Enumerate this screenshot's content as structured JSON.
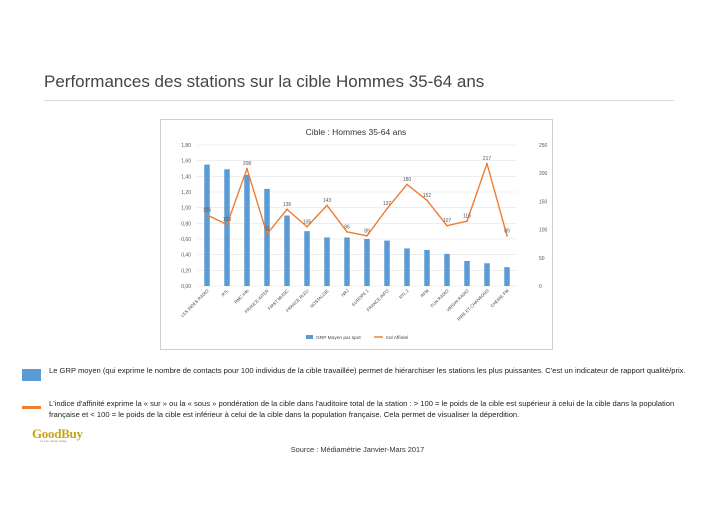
{
  "page": {
    "title": "Performances des stations sur la cible Hommes 35-64 ans",
    "source": "Source : Médiamétrie Janvier-Mars 2017",
    "logo_text": "GoodBuy",
    "logo_tagline": "Le bon achat média"
  },
  "legend_notes": [
    {
      "text": "Le GRP moyen (qui exprime le nombre de contacts pour 100 individus de la cible travaillée) permet de hiérarchiser les stations les plus puissantes. C'est un indicateur de rapport qualité/prix."
    },
    {
      "text": "L'indice d'affinité exprime la « sur » ou la « sous » pondération de la cible dans l'auditoire total de la station : > 100 = le poids de la cible est supérieur à celui de la cible dans la population française et < 100 = le poids de la cible est inférieur à celui de la cible dans la population française. Cela permet de visualiser la déperdition."
    }
  ],
  "colors": {
    "bar": "#5b9bd5",
    "line": "#ed7d31",
    "grid": "#e4e4e4",
    "axis_text": "#555555"
  },
  "chart_data": {
    "type": "bar",
    "title": "Cible : Hommes 35-64 ans",
    "categories": [
      "LES INDES RADIO",
      "RTL",
      "RMC Info",
      "FRANCE INTER",
      "FIRST MUSIC",
      "FRANCE BLEU",
      "NOSTALGIE",
      "NRJ",
      "EUROPE 1",
      "FRANCE INFO",
      "RTL 2",
      "RFM",
      "FUN RADIO",
      "VIRGIN RADIO",
      "RIRE ET CHANSONS",
      "CHERIE FM"
    ],
    "series": [
      {
        "name": "GRP Moyen par spot",
        "type": "bar",
        "axis": "left",
        "values": [
          1.55,
          1.49,
          1.42,
          1.24,
          0.9,
          0.7,
          0.62,
          0.62,
          0.6,
          0.58,
          0.48,
          0.46,
          0.41,
          0.32,
          0.29,
          0.24
        ]
      },
      {
        "name": "Ind Affinité",
        "type": "line",
        "axis": "right",
        "values": [
          126,
          109,
          208,
          92,
          136,
          105,
          143,
          96,
          89,
          137,
          180,
          152,
          107,
          115,
          217,
          89
        ],
        "data_labels": [
          "126",
          "109",
          "208",
          "92",
          "136",
          "105",
          "143",
          "96",
          "89",
          "137",
          "180",
          "152",
          "107",
          "115",
          "217",
          "89"
        ]
      }
    ],
    "y_left": {
      "ylim": [
        0,
        1.8
      ],
      "ticks": [
        "0,00",
        "0,20",
        "0,40",
        "0,60",
        "0,80",
        "1,00",
        "1,20",
        "1,40",
        "1,60",
        "1,80"
      ]
    },
    "y_right": {
      "ylim": [
        0,
        250
      ],
      "ticks": [
        "0",
        "50",
        "100",
        "150",
        "200",
        "250"
      ]
    },
    "grid": true,
    "legend": "bottom"
  }
}
